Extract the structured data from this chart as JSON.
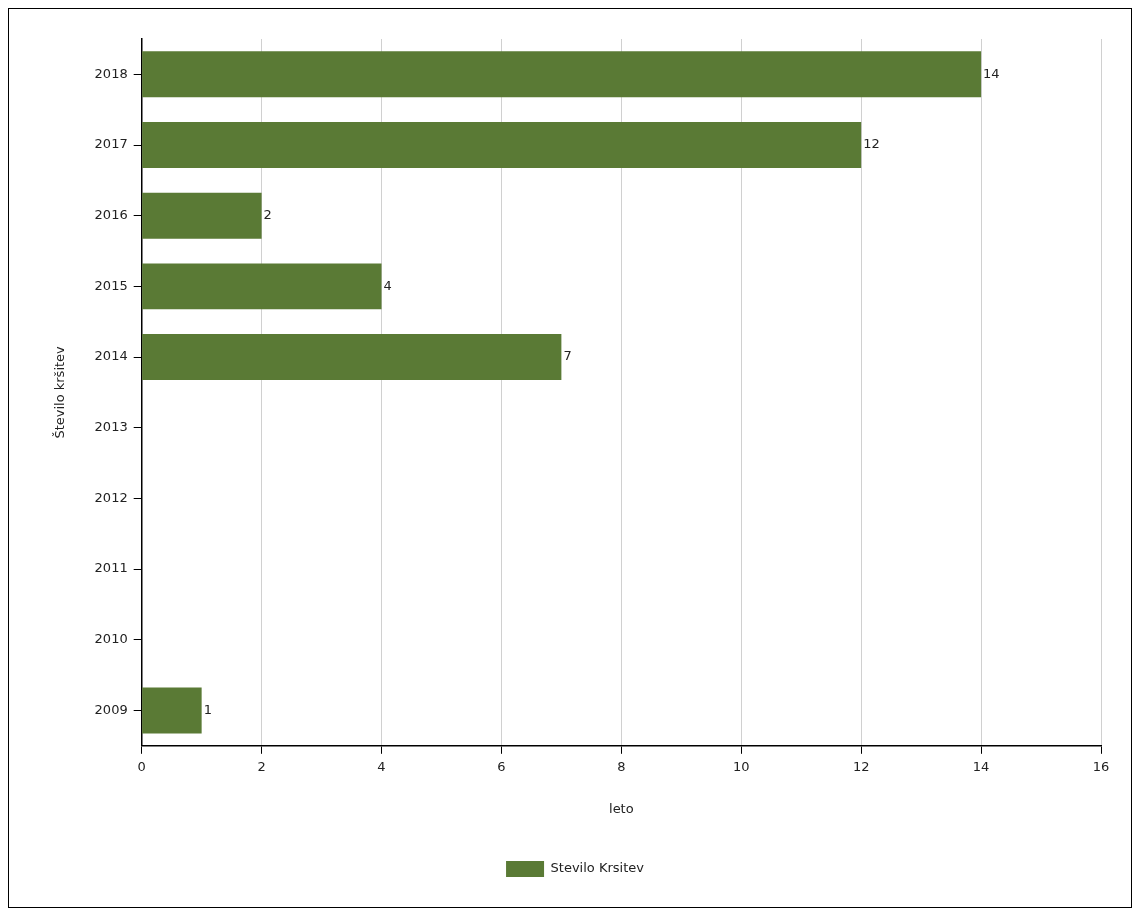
{
  "chart_data": {
    "type": "bar",
    "orientation": "horizontal",
    "xlabel": "leto",
    "ylabel": "Število kršitev",
    "categories": [
      "2018",
      "2017",
      "2016",
      "2015",
      "2014",
      "2013",
      "2012",
      "2011",
      "2010",
      "2009"
    ],
    "series": [
      {
        "name": "Stevilo Krsitev",
        "color": "#5a7a35",
        "values": [
          14,
          12,
          2,
          4,
          7,
          null,
          null,
          null,
          null,
          1
        ]
      }
    ],
    "xlim": [
      0,
      16
    ],
    "xticks": [
      0,
      2,
      4,
      6,
      8,
      10,
      12,
      14,
      16
    ],
    "grid": "x",
    "legend": "bottom",
    "data_labels": true
  }
}
